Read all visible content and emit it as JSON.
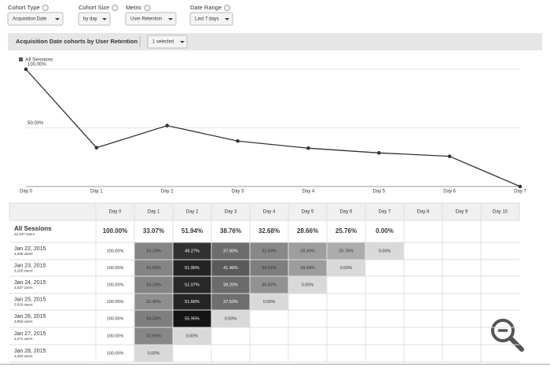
{
  "controls": [
    {
      "label": "Cohort Type",
      "value": "Acquisition Date"
    },
    {
      "label": "Cohort Size",
      "value": "by day"
    },
    {
      "label": "Metric",
      "value": "User Retention"
    },
    {
      "label": "Date Range",
      "value": "Last 7 days"
    }
  ],
  "panel": {
    "title": "Acquisition Date cohorts by User Retention",
    "selector": "1 selected"
  },
  "chart": {
    "type": "line",
    "legend": "All Sessions",
    "x": [
      "Day 0",
      "Day 1",
      "Day 2",
      "Day 3",
      "Day 4",
      "Day 5",
      "Day 6",
      "Day 7"
    ],
    "values": [
      100,
      33.07,
      51.94,
      38.76,
      32.68,
      28.66,
      25.76,
      0
    ],
    "ylim": [
      0,
      100
    ],
    "yticks": [
      {
        "value": 50,
        "label": "50.00%"
      },
      {
        "value": 100,
        "label": "100.00%"
      }
    ],
    "color": "#333333"
  },
  "table": {
    "columns": [
      "Day 0",
      "Day 1",
      "Day 2",
      "Day 3",
      "Day 4",
      "Day 5",
      "Day 6",
      "Day 7",
      "Day 8",
      "Day 9",
      "Day 10"
    ],
    "rows": [
      {
        "label": "All Sessions",
        "users": "22,237 users",
        "cells": [
          "100.00%",
          "33.07%",
          "51.94%",
          "38.76%",
          "32.68%",
          "28.66%",
          "25.76%",
          "0.00%"
        ]
      },
      {
        "label": "Jan 22, 2015",
        "users": "3,296 users",
        "cells": [
          "100.00%",
          "33.18%",
          "49.27%",
          "37.80%",
          "32.63%",
          "28.40%",
          "25.76%",
          "0.00%"
        ]
      },
      {
        "label": "Jan 23, 2015",
        "users": "3,155 users",
        "cells": [
          "100.00%",
          "33.50%",
          "51.95%",
          "41.46%",
          "34.52%",
          "28.64%",
          "0.00%"
        ]
      },
      {
        "label": "Jan 24, 2015",
        "users": "3,037 users",
        "cells": [
          "100.00%",
          "33.19%",
          "51.07%",
          "38.20%",
          "30.82%",
          "0.00%"
        ]
      },
      {
        "label": "Jan 25, 2015",
        "users": "3,016 users",
        "cells": [
          "100.00%",
          "31.40%",
          "51.66%",
          "37.53%",
          "0.00%"
        ]
      },
      {
        "label": "Jan 26, 2015",
        "users": "3,053 users",
        "cells": [
          "100.00%",
          "34.34%",
          "55.95%",
          "0.00%"
        ]
      },
      {
        "label": "Jan 27, 2015",
        "users": "3,271 users",
        "cells": [
          "100.00%",
          "32.90%",
          "0.00%"
        ]
      },
      {
        "label": "Jan 28, 2015",
        "users": "3,404 users",
        "cells": [
          "100.00%",
          "0.00%"
        ]
      }
    ]
  }
}
